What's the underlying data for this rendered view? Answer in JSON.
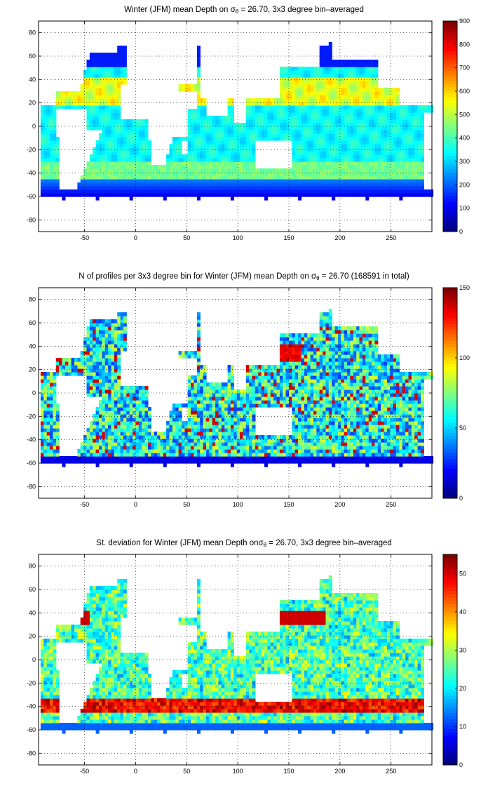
{
  "chart_data": [
    {
      "type": "heatmap",
      "title_pre": "Winter (JFM) mean Depth on σ",
      "title_sub": "θ",
      "title_post": " = 26.70, 3x3 degree bin–averaged",
      "xticks": [
        "-50",
        "0",
        "50",
        "100",
        "150",
        "200",
        "250"
      ],
      "xtick_values": [
        -50,
        0,
        50,
        100,
        150,
        200,
        250
      ],
      "yticks": [
        "80",
        "60",
        "40",
        "20",
        "0",
        "-20",
        "-40",
        "-60",
        "-80"
      ],
      "ytick_values": [
        80,
        60,
        40,
        20,
        0,
        -20,
        -40,
        -60,
        -80
      ],
      "xlim": [
        -95,
        290
      ],
      "ylim": [
        -90,
        90
      ],
      "colorbar_ticks": [
        "0",
        "100",
        "200",
        "300",
        "400",
        "500",
        "600",
        "700",
        "800",
        "900"
      ],
      "colorbar_values": [
        0,
        100,
        200,
        300,
        400,
        500,
        600,
        700,
        800,
        900
      ],
      "colorbar_range": [
        0,
        900
      ],
      "colormap": "jet",
      "grid": "dotted"
    },
    {
      "type": "heatmap",
      "title_pre": "N of profiles per 3x3 degree bin for Winter (JFM) mean Depth on σ",
      "title_sub": "θ",
      "title_post": " = 26.70 (168591 in total)",
      "xticks": [
        "-50",
        "0",
        "50",
        "100",
        "150",
        "200",
        "250"
      ],
      "xtick_values": [
        -50,
        0,
        50,
        100,
        150,
        200,
        250
      ],
      "yticks": [
        "80",
        "60",
        "40",
        "20",
        "0",
        "-20",
        "-40",
        "-60",
        "-80"
      ],
      "ytick_values": [
        80,
        60,
        40,
        20,
        0,
        -20,
        -40,
        -60,
        -80
      ],
      "xlim": [
        -95,
        290
      ],
      "ylim": [
        -90,
        90
      ],
      "colorbar_ticks": [
        "0",
        "50",
        "100",
        "150"
      ],
      "colorbar_values": [
        0,
        50,
        100,
        150
      ],
      "colorbar_range": [
        0,
        150
      ],
      "colormap": "jet",
      "grid": "dotted"
    },
    {
      "type": "heatmap",
      "title_pre": "St. deviation for Winter (JFM) mean Depth onσ",
      "title_sub": "θ",
      "title_post": " = 26.70, 3x3 degree bin–averaged",
      "xticks": [
        "-50",
        "0",
        "50",
        "100",
        "150",
        "200",
        "250"
      ],
      "xtick_values": [
        -50,
        0,
        50,
        100,
        150,
        200,
        250
      ],
      "yticks": [
        "80",
        "60",
        "40",
        "20",
        "0",
        "-20",
        "-40",
        "-60",
        "-80"
      ],
      "ytick_values": [
        80,
        60,
        40,
        20,
        0,
        -20,
        -40,
        -60,
        -80
      ],
      "xlim": [
        -95,
        290
      ],
      "ylim": [
        -90,
        90
      ],
      "colorbar_ticks": [
        "0",
        "10",
        "20",
        "30",
        "40",
        "50"
      ],
      "colorbar_values": [
        0,
        10,
        20,
        30,
        40,
        50
      ],
      "colorbar_range": [
        0,
        55
      ],
      "colormap": "jet",
      "grid": "dotted"
    }
  ]
}
